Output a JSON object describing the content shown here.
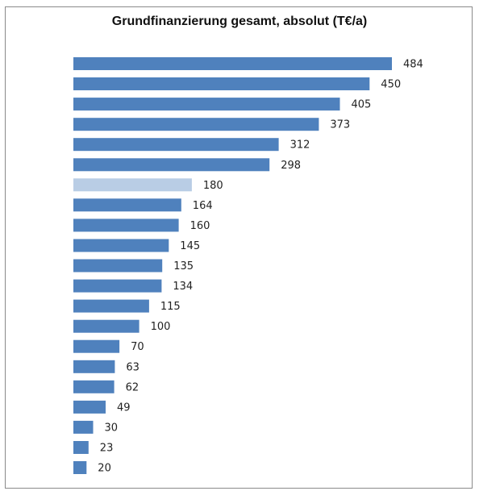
{
  "chart_data": {
    "type": "bar",
    "orientation": "horizontal",
    "title": "Grundfinanzierung gesamt, absolut (T€/a)",
    "values": [
      484,
      450,
      405,
      373,
      312,
      298,
      180,
      164,
      160,
      145,
      135,
      134,
      115,
      100,
      70,
      63,
      62,
      49,
      30,
      23,
      20
    ],
    "highlight_index": 6,
    "colors": {
      "bar": "#4f81bd",
      "highlight": "#b9cde5"
    },
    "grid": false,
    "legend": "none"
  }
}
